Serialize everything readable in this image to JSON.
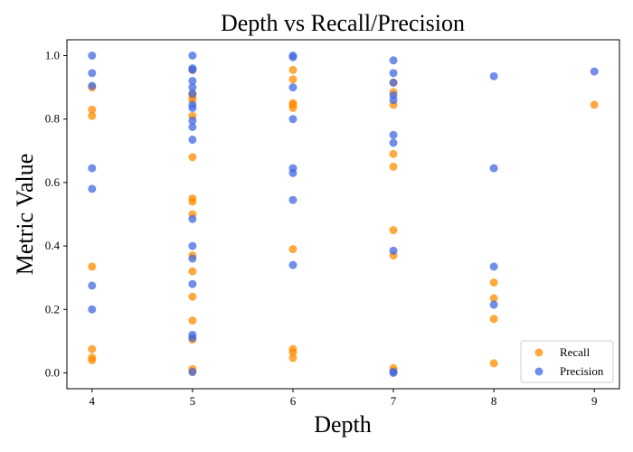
{
  "chart_data": {
    "type": "scatter",
    "title": "Depth vs Recall/Precision",
    "xlabel": "Depth",
    "ylabel": "Metric Value",
    "xlim": [
      3.75,
      9.25
    ],
    "ylim": [
      -0.05,
      1.05
    ],
    "x_ticks": [
      4,
      5,
      6,
      7,
      8,
      9
    ],
    "y_ticks": [
      0.0,
      0.2,
      0.4,
      0.6,
      0.8,
      1.0
    ],
    "x_tick_labels": [
      "4",
      "5",
      "6",
      "7",
      "8",
      "9"
    ],
    "y_tick_labels": [
      "0.0",
      "0.2",
      "0.4",
      "0.6",
      "0.8",
      "1.0"
    ],
    "legend_position": "lower-right",
    "series": [
      {
        "name": "Recall",
        "color": "#FF8C00",
        "points": [
          [
            4,
            0.9
          ],
          [
            4,
            0.83
          ],
          [
            4,
            0.81
          ],
          [
            4,
            0.335
          ],
          [
            4,
            0.075
          ],
          [
            4,
            0.048
          ],
          [
            4,
            0.04
          ],
          [
            5,
            0.955
          ],
          [
            5,
            0.88
          ],
          [
            5,
            0.87
          ],
          [
            5,
            0.86
          ],
          [
            5,
            0.81
          ],
          [
            5,
            0.68
          ],
          [
            5,
            0.55
          ],
          [
            5,
            0.54
          ],
          [
            5,
            0.5
          ],
          [
            5,
            0.37
          ],
          [
            5,
            0.32
          ],
          [
            5,
            0.24
          ],
          [
            5,
            0.165
          ],
          [
            5,
            0.105
          ],
          [
            5,
            0.012
          ],
          [
            5,
            0.003
          ],
          [
            6,
            0.955
          ],
          [
            6,
            0.925
          ],
          [
            6,
            0.85
          ],
          [
            6,
            0.845
          ],
          [
            6,
            0.835
          ],
          [
            6,
            0.39
          ],
          [
            6,
            0.075
          ],
          [
            6,
            0.065
          ],
          [
            6,
            0.047
          ],
          [
            7,
            0.915
          ],
          [
            7,
            0.885
          ],
          [
            7,
            0.845
          ],
          [
            7,
            0.69
          ],
          [
            7,
            0.65
          ],
          [
            7,
            0.45
          ],
          [
            7,
            0.37
          ],
          [
            7,
            0.015
          ],
          [
            7,
            0.005
          ],
          [
            8,
            0.285
          ],
          [
            8,
            0.235
          ],
          [
            8,
            0.17
          ],
          [
            8,
            0.03
          ],
          [
            9,
            0.845
          ]
        ]
      },
      {
        "name": "Precision",
        "color": "#4169E1",
        "points": [
          [
            4,
            1.0
          ],
          [
            4,
            0.945
          ],
          [
            4,
            0.905
          ],
          [
            4,
            0.645
          ],
          [
            4,
            0.58
          ],
          [
            4,
            0.275
          ],
          [
            4,
            0.2
          ],
          [
            5,
            1.0
          ],
          [
            5,
            0.96
          ],
          [
            5,
            0.955
          ],
          [
            5,
            0.92
          ],
          [
            5,
            0.9
          ],
          [
            5,
            0.88
          ],
          [
            5,
            0.845
          ],
          [
            5,
            0.835
          ],
          [
            5,
            0.795
          ],
          [
            5,
            0.775
          ],
          [
            5,
            0.735
          ],
          [
            5,
            0.485
          ],
          [
            5,
            0.4
          ],
          [
            5,
            0.36
          ],
          [
            5,
            0.28
          ],
          [
            5,
            0.12
          ],
          [
            5,
            0.11
          ],
          [
            5,
            0.003
          ],
          [
            6,
            1.0
          ],
          [
            6,
            0.995
          ],
          [
            6,
            0.9
          ],
          [
            6,
            0.8
          ],
          [
            6,
            0.645
          ],
          [
            6,
            0.63
          ],
          [
            6,
            0.545
          ],
          [
            6,
            0.34
          ],
          [
            7,
            0.985
          ],
          [
            7,
            0.945
          ],
          [
            7,
            0.915
          ],
          [
            7,
            0.875
          ],
          [
            7,
            0.86
          ],
          [
            7,
            0.75
          ],
          [
            7,
            0.725
          ],
          [
            7,
            0.385
          ],
          [
            7,
            0.003
          ],
          [
            7,
            0.0
          ],
          [
            8,
            0.935
          ],
          [
            8,
            0.645
          ],
          [
            8,
            0.335
          ],
          [
            8,
            0.215
          ],
          [
            9,
            0.95
          ]
        ]
      }
    ]
  }
}
